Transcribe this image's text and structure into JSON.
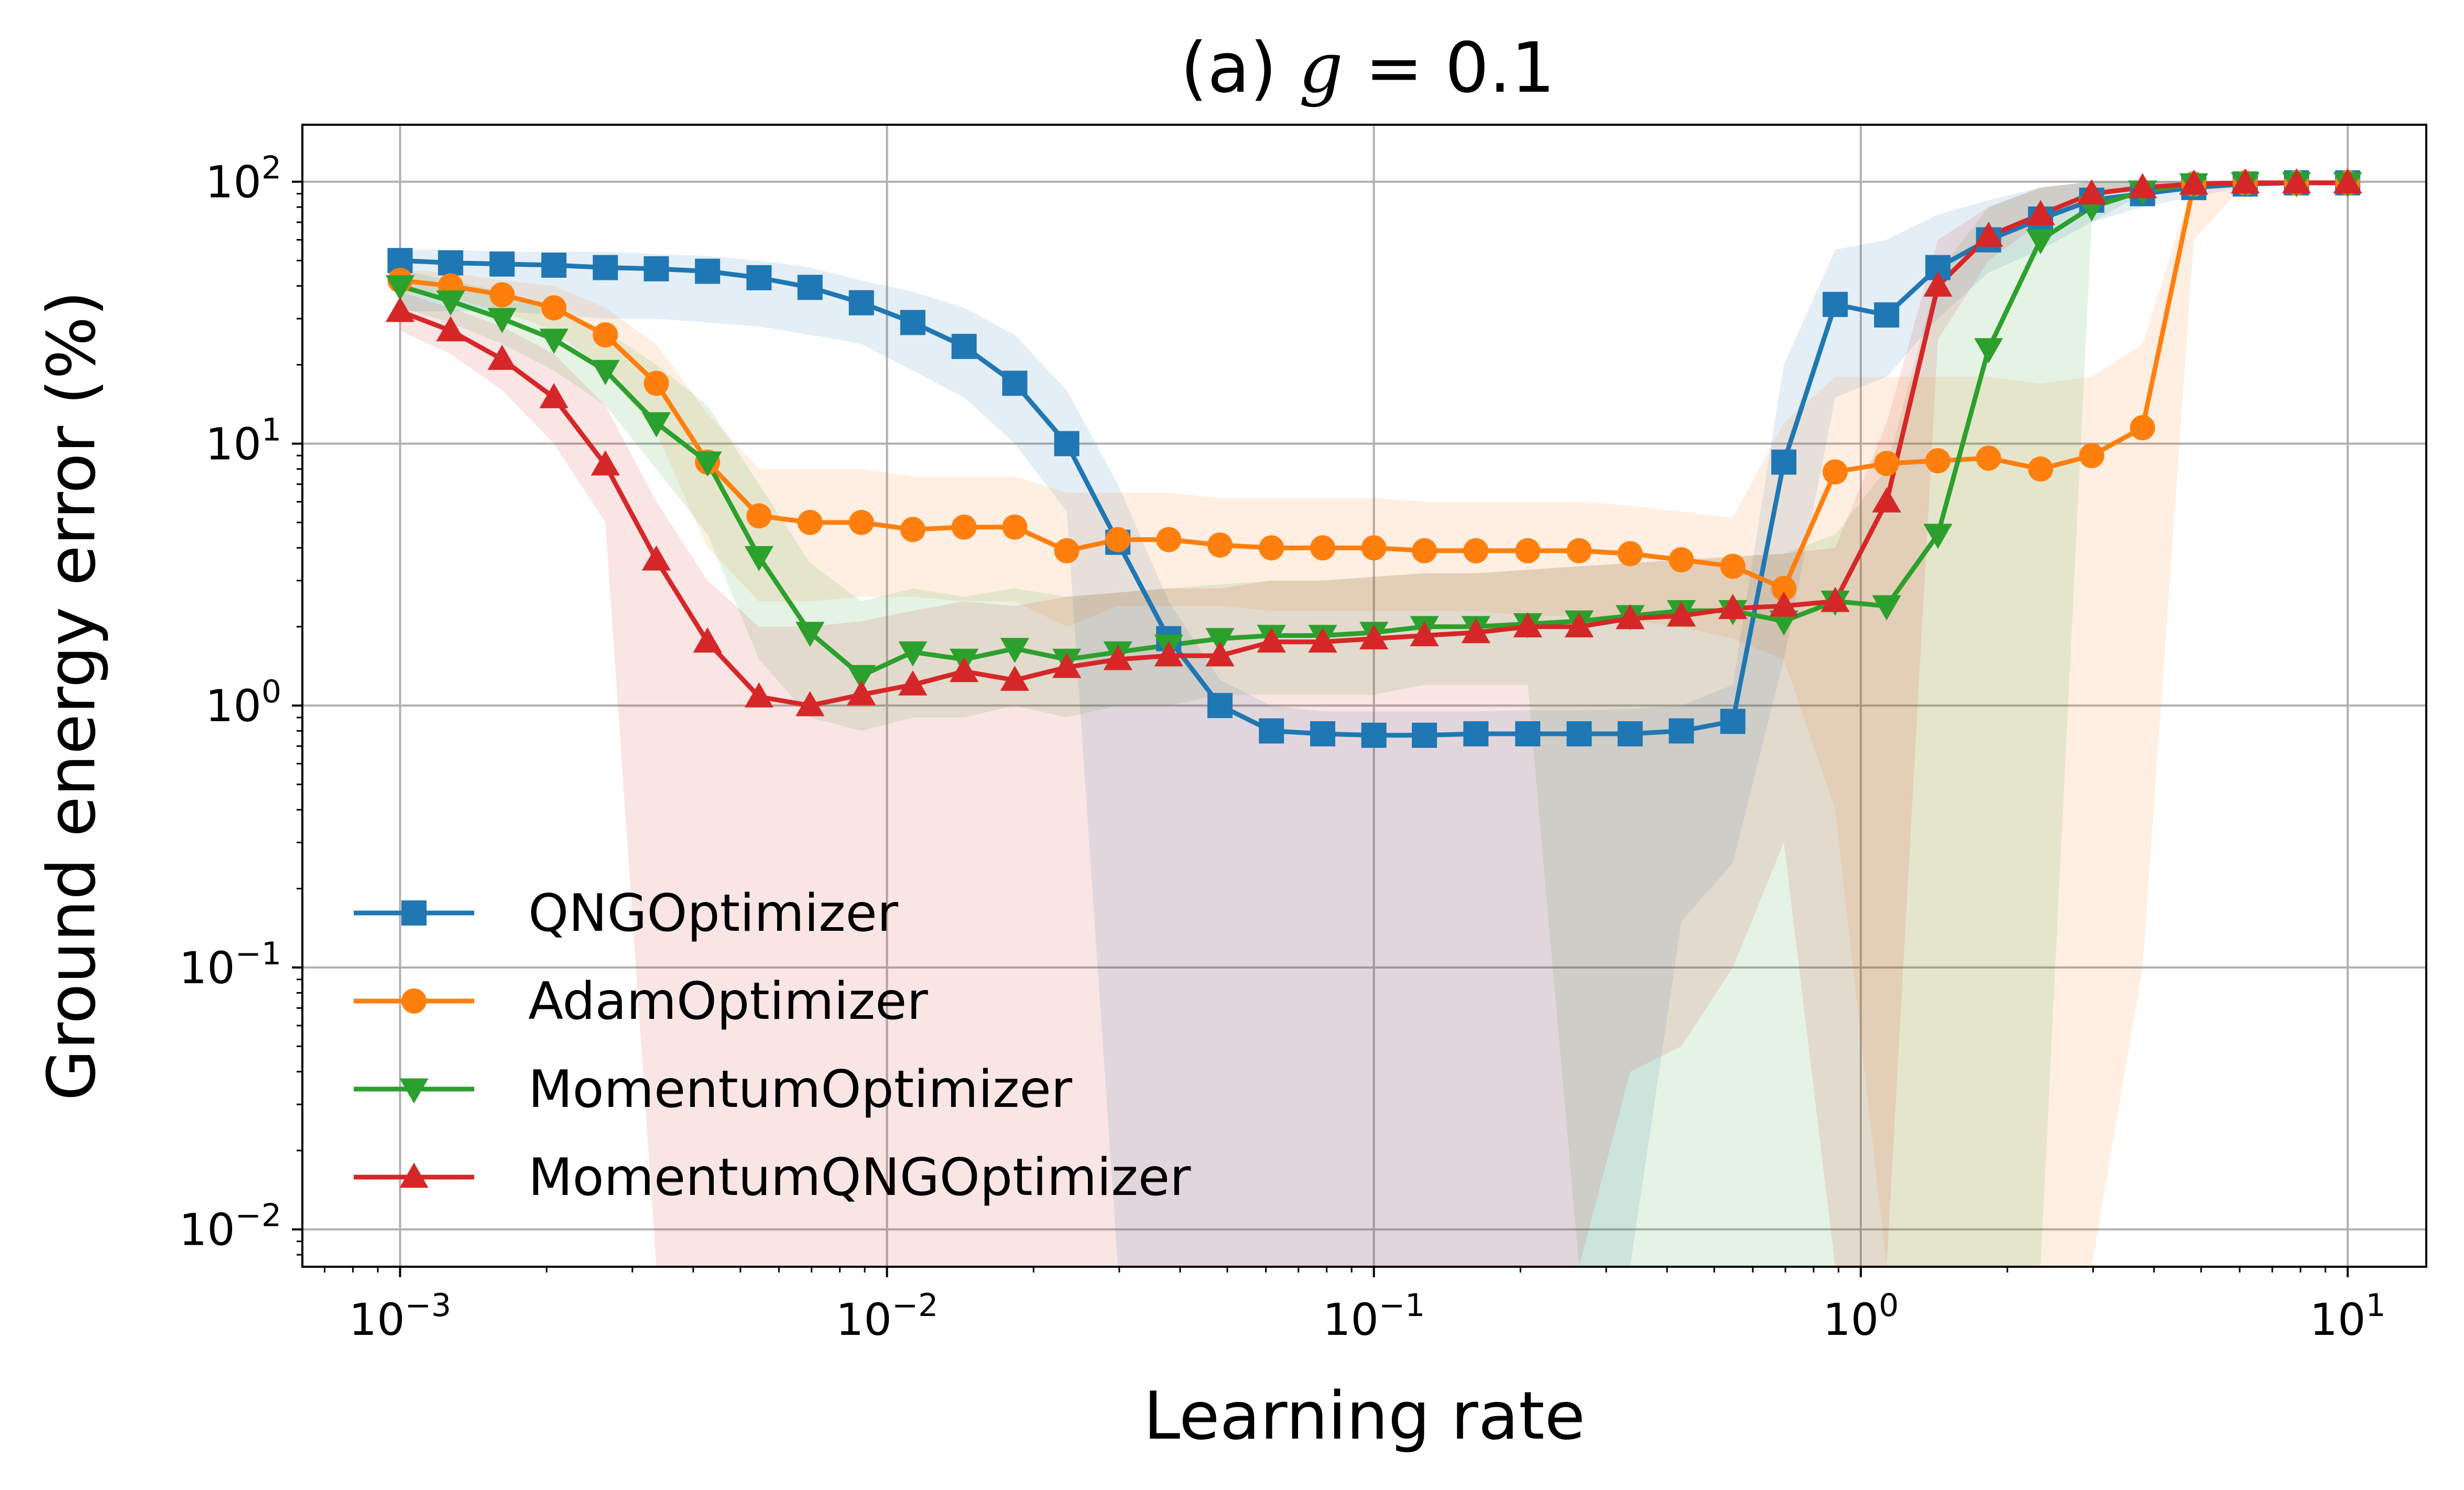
{
  "chart_data": {
    "type": "line",
    "title": "(a) g = 0.1",
    "title_prefix": "(a) ",
    "title_var": "g",
    "title_rest": " = 0.1",
    "xlabel": "Learning rate",
    "ylabel": "Ground energy error (%)",
    "xscale": "log",
    "yscale": "log",
    "xlim": [
      0.00063,
      14.5
    ],
    "ylim": [
      0.0072,
      165
    ],
    "grid": true,
    "legend_position": "lower-left",
    "x_ticks": [
      {
        "value": 0.001,
        "base": "10",
        "exp": "−3"
      },
      {
        "value": 0.01,
        "base": "10",
        "exp": "−2"
      },
      {
        "value": 0.1,
        "base": "10",
        "exp": "−1"
      },
      {
        "value": 1,
        "base": "10",
        "exp": "0"
      },
      {
        "value": 10,
        "base": "10",
        "exp": "1"
      }
    ],
    "y_ticks": [
      {
        "value": 0.01,
        "base": "10",
        "exp": "−2"
      },
      {
        "value": 0.1,
        "base": "10",
        "exp": "−1"
      },
      {
        "value": 1,
        "base": "10",
        "exp": "0"
      },
      {
        "value": 10,
        "base": "10",
        "exp": "1"
      },
      {
        "value": 100,
        "base": "10",
        "exp": "2"
      }
    ],
    "x": [
      0.001,
      0.00127,
      0.00162,
      0.00207,
      0.00264,
      0.00336,
      0.00428,
      0.00546,
      0.00695,
      0.00886,
      0.0113,
      0.0144,
      0.0183,
      0.0234,
      0.0298,
      0.0379,
      0.0483,
      0.0616,
      0.0785,
      0.1,
      0.127,
      0.162,
      0.207,
      0.264,
      0.336,
      0.428,
      0.546,
      0.695,
      0.886,
      1.13,
      1.44,
      1.83,
      2.34,
      2.98,
      3.79,
      4.83,
      6.16,
      7.85,
      10.0
    ],
    "series": [
      {
        "name": "QNGOptimizer",
        "color": "#1f77b4",
        "marker": "square",
        "values": [
          50,
          49,
          48.5,
          48,
          47,
          46.5,
          45.5,
          43,
          39.5,
          34.5,
          29,
          23.5,
          17,
          10,
          4.2,
          1.8,
          1.0,
          0.8,
          0.78,
          0.77,
          0.77,
          0.78,
          0.78,
          0.78,
          0.78,
          0.8,
          0.87,
          8.5,
          34,
          31,
          47,
          60,
          72,
          85,
          90,
          95,
          98,
          99,
          99
        ],
        "band": {
          "lower": [
            32,
            32,
            32,
            31,
            30,
            30,
            29,
            28,
            26,
            24,
            19,
            15,
            10,
            5.5,
            0.007,
            0.007,
            0.007,
            0.007,
            0.007,
            0.007,
            0.007,
            0.007,
            0.007,
            0.007,
            0.007,
            0.15,
            0.25,
            1.5,
            15,
            18,
            30,
            45,
            55,
            70,
            80,
            88,
            95,
            97,
            98
          ],
          "upper": [
            55,
            55,
            54,
            54,
            54,
            53,
            52,
            50,
            47,
            42,
            38,
            33,
            26,
            16,
            7,
            2.5,
            1.25,
            1.0,
            0.95,
            0.95,
            0.95,
            0.95,
            0.96,
            0.96,
            0.97,
            1.0,
            1.2,
            20,
            55,
            60,
            75,
            85,
            95,
            100,
            100,
            100,
            100,
            100,
            100
          ]
        }
      },
      {
        "name": "AdamOptimizer",
        "color": "#ff7f0e",
        "marker": "circle",
        "values": [
          42,
          40,
          37,
          33,
          26,
          17,
          8.5,
          5.3,
          5.0,
          5.0,
          4.7,
          4.8,
          4.8,
          3.9,
          4.3,
          4.3,
          4.1,
          4.0,
          4.0,
          4.0,
          3.9,
          3.9,
          3.9,
          3.9,
          3.8,
          3.6,
          3.4,
          2.8,
          7.8,
          8.4,
          8.6,
          8.8,
          8.0,
          9.0,
          11.5,
          98,
          99,
          99,
          99
        ],
        "band": {
          "lower": [
            38,
            36,
            32,
            27,
            19,
            11,
            4,
            2.5,
            2.5,
            2.6,
            2.6,
            2.5,
            2.5,
            2.0,
            2.4,
            2.4,
            2.4,
            2.3,
            2.3,
            2.3,
            2.3,
            2.3,
            2.2,
            2.2,
            2.1,
            2.0,
            1.8,
            1.5,
            0.4,
            0.007,
            0.007,
            0.007,
            0.007,
            0.007,
            0.1,
            60,
            98,
            98,
            98
          ],
          "upper": [
            46,
            45,
            42,
            40,
            33,
            24,
            13,
            8.0,
            8.0,
            8.0,
            7.5,
            7.5,
            7.5,
            6.5,
            6.5,
            6.5,
            6.2,
            6.2,
            6.2,
            6.2,
            6.0,
            6.0,
            6.0,
            6.0,
            5.8,
            5.5,
            5.2,
            12,
            18,
            18,
            18,
            18,
            17,
            18,
            24,
            100,
            100,
            100,
            100
          ]
        }
      },
      {
        "name": "MomentumOptimizer",
        "color": "#2ca02c",
        "marker": "triangle-down",
        "values": [
          40,
          35,
          30,
          25,
          19,
          12,
          8.5,
          3.7,
          1.9,
          1.3,
          1.6,
          1.5,
          1.65,
          1.5,
          1.6,
          1.7,
          1.8,
          1.85,
          1.85,
          1.9,
          2.0,
          2.0,
          2.05,
          2.1,
          2.2,
          2.3,
          2.3,
          2.1,
          2.5,
          2.4,
          4.5,
          23,
          60,
          80,
          92,
          98,
          99,
          99,
          99
        ],
        "band": {
          "lower": [
            33,
            29,
            24,
            19,
            14,
            8,
            4.5,
            1.5,
            0.9,
            0.8,
            0.9,
            0.9,
            1.0,
            0.9,
            1.0,
            1.0,
            1.1,
            1.1,
            1.1,
            1.1,
            1.2,
            1.2,
            1.2,
            0.007,
            0.007,
            0.007,
            0.007,
            0.007,
            0.007,
            0.007,
            0.007,
            0.007,
            0.007,
            70,
            90,
            97,
            98,
            98,
            98
          ],
          "upper": [
            46,
            42,
            38,
            32,
            27,
            20,
            14,
            7,
            3.5,
            2.5,
            2.8,
            2.6,
            2.8,
            2.6,
            2.7,
            2.8,
            2.9,
            3.0,
            3.0,
            3.1,
            3.2,
            3.2,
            3.3,
            3.4,
            3.5,
            3.6,
            3.7,
            3.8,
            4.5,
            8,
            45,
            80,
            95,
            100,
            100,
            100,
            100,
            100,
            100
          ]
        }
      },
      {
        "name": "MomentumQNGOptimizer",
        "color": "#d62728",
        "marker": "triangle-up",
        "values": [
          32,
          27,
          21,
          15,
          8.3,
          3.6,
          1.75,
          1.08,
          1.0,
          1.1,
          1.2,
          1.35,
          1.25,
          1.4,
          1.5,
          1.55,
          1.55,
          1.75,
          1.75,
          1.8,
          1.85,
          1.9,
          2.0,
          2.0,
          2.15,
          2.2,
          2.35,
          2.4,
          2.5,
          6.0,
          40,
          62,
          75,
          90,
          95,
          98,
          99,
          99,
          99
        ],
        "band": {
          "lower": [
            27,
            22,
            16,
            10,
            5,
            0.007,
            0.007,
            0.007,
            0.007,
            0.007,
            0.007,
            0.007,
            0.007,
            0.007,
            0.007,
            0.007,
            0.007,
            0.007,
            0.007,
            0.007,
            0.007,
            0.007,
            0.007,
            0.007,
            0.04,
            0.05,
            0.1,
            0.3,
            0.007,
            0.007,
            25,
            50,
            70,
            88,
            94,
            97,
            98,
            98,
            98
          ],
          "upper": [
            38,
            33,
            28,
            22,
            14,
            6,
            3.0,
            2.0,
            2.0,
            2.1,
            2.3,
            2.5,
            2.4,
            2.6,
            2.7,
            2.8,
            2.8,
            3.0,
            3.0,
            3.1,
            3.2,
            3.2,
            3.3,
            3.4,
            3.5,
            3.6,
            3.7,
            3.8,
            4.0,
            12,
            60,
            80,
            95,
            100,
            100,
            100,
            100,
            100,
            100
          ]
        }
      }
    ]
  }
}
